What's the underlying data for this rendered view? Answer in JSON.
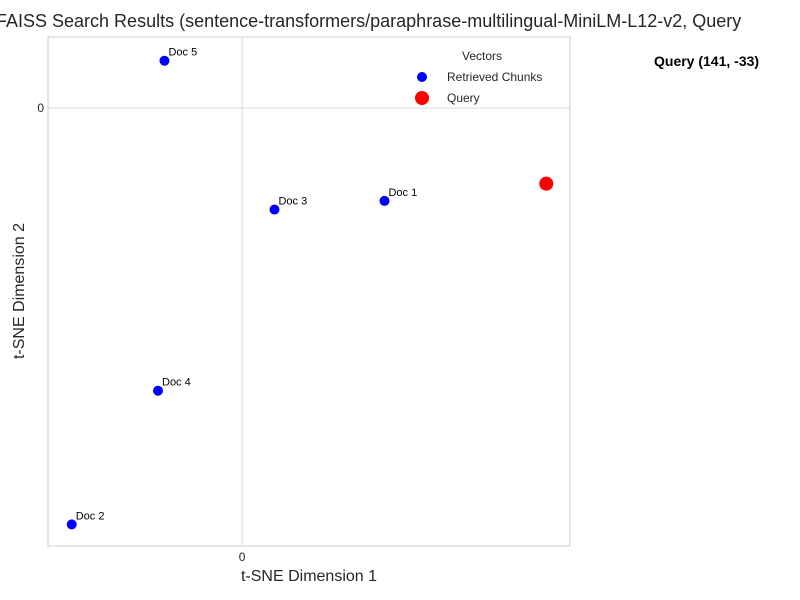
{
  "chart_data": {
    "type": "scatter",
    "title": "FAISS Search Results (sentence-transformers/paraphrase-multilingual-MiniLM-L12-v2, Query",
    "xlabel": "t-SNE Dimension 1",
    "ylabel": "t-SNE Dimension 2",
    "xlim": [
      -90,
      152
    ],
    "ylim": [
      -203,
      33
    ],
    "xticks": [
      0
    ],
    "yticks": [
      0
    ],
    "xtick_labels": [
      "0"
    ],
    "ytick_labels": [
      "0"
    ],
    "grid": true,
    "legend": {
      "title": "Vectors",
      "placement": "top-right",
      "entries": [
        {
          "label": "Retrieved Chunks",
          "color": "#0000ff"
        },
        {
          "label": "Query",
          "color": "#ff0000"
        }
      ]
    },
    "series": [
      {
        "name": "Retrieved Chunks",
        "color": "#0000ff",
        "points": [
          {
            "label": "Doc 5",
            "x": -36,
            "y": 22
          },
          {
            "label": "Doc 3",
            "x": 15,
            "y": -47
          },
          {
            "label": "Doc 1",
            "x": 66,
            "y": -43
          },
          {
            "label": "Doc 4",
            "x": -39,
            "y": -131
          },
          {
            "label": "Doc 2",
            "x": -79,
            "y": -193
          }
        ]
      },
      {
        "name": "Query",
        "color": "#ff0000",
        "points": [
          {
            "label": "",
            "x": 141,
            "y": -35
          }
        ]
      }
    ],
    "annotation": "Query (141, -33)"
  }
}
